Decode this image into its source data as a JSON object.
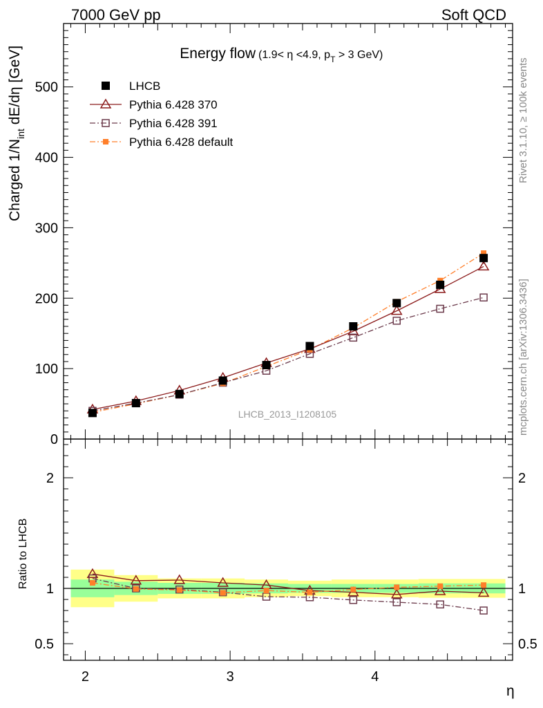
{
  "header": {
    "left": "7000 GeV pp",
    "right": "Soft QCD"
  },
  "side_labels": {
    "top_right": "Rivet 3.1.10, ≥ 100k events",
    "bottom_right": "mcplots.cern.ch [arXiv:1306.3436]"
  },
  "colors": {
    "data": "#000000",
    "pythia_370": "#8b1a1a",
    "pythia_391": "#6b3a4b",
    "pythia_default": "#ff7f2a",
    "band_inner": "#99ff99",
    "band_outer": "#ffff88"
  },
  "chart_data": [
    {
      "type": "line",
      "title": "Energy flow",
      "subtitle": "(1.9< η <4.9, p_T > 3 GeV)",
      "xlabel": "",
      "ylabel": "Charged 1/N_int dE/dη [GeV]",
      "watermark": "LHCB_2013_I1208105",
      "xlim": [
        1.85,
        4.95
      ],
      "ylim": [
        0,
        590
      ],
      "yticks": [
        100,
        200,
        300,
        400,
        500
      ],
      "legend_position": "top-left",
      "x": [
        2.05,
        2.35,
        2.65,
        2.95,
        3.25,
        3.55,
        3.85,
        4.15,
        4.45,
        4.75
      ],
      "series": [
        {
          "name": "LHCB",
          "marker": "filled-square",
          "values": [
            37,
            51,
            64,
            83,
            105,
            132,
            160,
            193,
            219,
            257
          ],
          "errors": [
            3,
            3,
            3,
            3,
            3,
            4,
            4,
            5,
            6,
            8
          ]
        },
        {
          "name": "Pythia 6.428 370",
          "marker": "open-triangle",
          "line": "solid",
          "values": [
            42,
            54,
            69,
            87,
            108,
            128,
            153,
            182,
            213,
            245
          ]
        },
        {
          "name": "Pythia 6.428 391",
          "marker": "open-square",
          "line": "dashdot",
          "values": [
            40,
            51,
            63,
            80,
            97,
            121,
            144,
            168,
            185,
            201
          ]
        },
        {
          "name": "Pythia 6.428 default",
          "marker": "filled-square-small",
          "line": "dashdot",
          "values": [
            38,
            50,
            63,
            79,
            103,
            127,
            158,
            195,
            225,
            264
          ]
        }
      ]
    },
    {
      "type": "line",
      "title": "",
      "xlabel": "η",
      "ylabel": "Ratio to LHCB",
      "xlim": [
        1.85,
        4.95
      ],
      "ylim": [
        0.35,
        2.35
      ],
      "yticks": [
        0.5,
        1,
        2
      ],
      "xticks": [
        2,
        3,
        4
      ],
      "bands": [
        {
          "x_from": 1.9,
          "x_to": 2.2,
          "inner": [
            0.92,
            1.08
          ],
          "outer": [
            0.83,
            1.17
          ]
        },
        {
          "x_from": 2.2,
          "x_to": 2.5,
          "inner": [
            0.94,
            1.06
          ],
          "outer": [
            0.88,
            1.12
          ]
        },
        {
          "x_from": 2.5,
          "x_to": 2.8,
          "inner": [
            0.95,
            1.05
          ],
          "outer": [
            0.91,
            1.09
          ]
        },
        {
          "x_from": 2.8,
          "x_to": 3.1,
          "inner": [
            0.95,
            1.05
          ],
          "outer": [
            0.91,
            1.09
          ]
        },
        {
          "x_from": 3.1,
          "x_to": 3.4,
          "inner": [
            0.955,
            1.045
          ],
          "outer": [
            0.92,
            1.08
          ]
        },
        {
          "x_from": 3.4,
          "x_to": 3.7,
          "inner": [
            0.96,
            1.04
          ],
          "outer": [
            0.93,
            1.07
          ]
        },
        {
          "x_from": 3.7,
          "x_to": 4.0,
          "inner": [
            0.96,
            1.04
          ],
          "outer": [
            0.92,
            1.08
          ]
        },
        {
          "x_from": 4.0,
          "x_to": 4.3,
          "inner": [
            0.96,
            1.04
          ],
          "outer": [
            0.92,
            1.08
          ]
        },
        {
          "x_from": 4.3,
          "x_to": 4.6,
          "inner": [
            0.955,
            1.045
          ],
          "outer": [
            0.915,
            1.085
          ]
        },
        {
          "x_from": 4.6,
          "x_to": 4.9,
          "inner": [
            0.955,
            1.045
          ],
          "outer": [
            0.915,
            1.085
          ]
        }
      ],
      "x": [
        2.05,
        2.35,
        2.65,
        2.95,
        3.25,
        3.55,
        3.85,
        4.15,
        4.45,
        4.75
      ],
      "series": [
        {
          "name": "Pythia 6.428 370",
          "values": [
            1.13,
            1.07,
            1.075,
            1.05,
            1.03,
            0.98,
            0.965,
            0.945,
            0.975,
            0.96
          ]
        },
        {
          "name": "Pythia 6.428 391",
          "values": [
            1.09,
            1.0,
            0.99,
            0.965,
            0.925,
            0.92,
            0.895,
            0.875,
            0.855,
            0.8
          ]
        },
        {
          "name": "Pythia 6.428 default",
          "values": [
            1.05,
            0.995,
            0.985,
            0.96,
            0.98,
            0.965,
            0.99,
            1.01,
            1.02,
            1.03
          ]
        }
      ]
    }
  ]
}
